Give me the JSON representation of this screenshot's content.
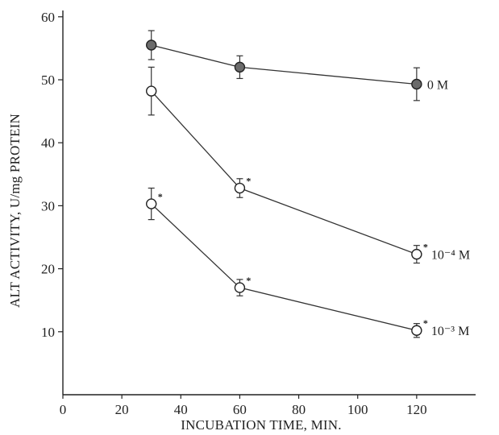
{
  "chart_data": {
    "type": "line",
    "xlabel": "INCUBATION TIME, MIN.",
    "ylabel": "ALT ACTIVITY, U/mg PROTEIN",
    "x_ticks": [
      0,
      20,
      40,
      60,
      80,
      100,
      120
    ],
    "y_ticks": [
      10,
      20,
      30,
      40,
      50,
      60
    ],
    "xlim": [
      0,
      140
    ],
    "ylim": [
      0,
      61
    ],
    "grid": false,
    "series": [
      {
        "label": "0 M",
        "marker": "filled-circle",
        "color": "#6b6b6b",
        "x": [
          30,
          60,
          120
        ],
        "y": [
          55.5,
          52,
          49.3
        ],
        "error": [
          2.3,
          1.8,
          2.6
        ],
        "significant": [
          false,
          false,
          false
        ]
      },
      {
        "label": "10⁻⁴ M",
        "marker": "open-circle",
        "color": "#ffffff",
        "x": [
          30,
          60,
          120
        ],
        "y": [
          48.2,
          32.8,
          22.3
        ],
        "error": [
          3.8,
          1.5,
          1.4
        ],
        "significant": [
          false,
          true,
          true
        ]
      },
      {
        "label": "10⁻³ M",
        "marker": "open-circle",
        "color": "#ffffff",
        "x": [
          30,
          60,
          120
        ],
        "y": [
          30.3,
          17,
          10.2
        ],
        "error": [
          2.5,
          1.3,
          1.1
        ],
        "significant": [
          true,
          true,
          true
        ]
      }
    ],
    "significance_symbol": "*"
  }
}
